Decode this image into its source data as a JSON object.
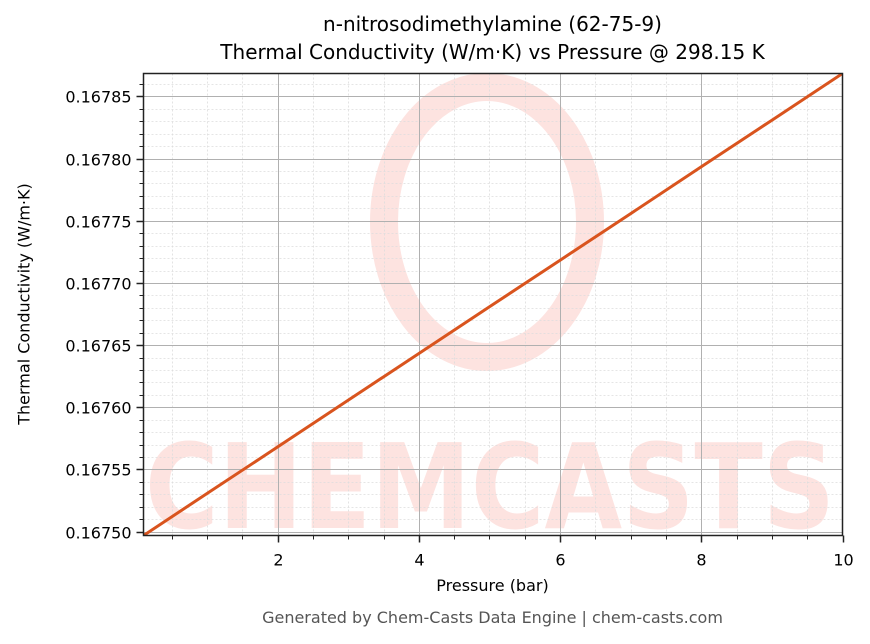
{
  "title_line1": "n-nitrosodimethylamine (62-75-9)",
  "title_line2": "Thermal Conductivity (W/m·K) vs Pressure @ 298.15 K",
  "xlabel": "Pressure (bar)",
  "ylabel": "Thermal Conductivity (W/m·K)",
  "footer": "Generated by Chem-Casts Data Engine | chem-casts.com",
  "watermark": "CHEMCASTS",
  "colors": {
    "line": "#d9541e",
    "watermark": "#fde3e0",
    "grid_major": "#b0b0b0",
    "grid_minor": "#dddddd",
    "footer_text": "#555555"
  },
  "chart_data": {
    "type": "line",
    "title": "n-nitrosodimethylamine (62-75-9)\nThermal Conductivity (W/m·K) vs Pressure @ 298.15 K",
    "xlabel": "Pressure (bar)",
    "ylabel": "Thermal Conductivity (W/m·K)",
    "xlim": [
      0.1,
      10
    ],
    "ylim": [
      0.1674968,
      0.1678685
    ],
    "xticks": [
      2,
      4,
      6,
      8,
      10
    ],
    "xtick_labels": [
      "2",
      "4",
      "6",
      "8",
      "10"
    ],
    "x_minor_step": 0.5,
    "yticks": [
      0.1675,
      0.16755,
      0.1676,
      0.16765,
      0.1677,
      0.16775,
      0.1678,
      0.16785
    ],
    "ytick_labels": [
      "0.16750",
      "0.16755",
      "0.16760",
      "0.16765",
      "0.16770",
      "0.16775",
      "0.16780",
      "0.16785"
    ],
    "y_minor_step": 1e-05,
    "grid": true,
    "legend": null,
    "series": [
      {
        "name": "Thermal Conductivity",
        "color": "#d9541e",
        "x": [
          0.1,
          1,
          2,
          3,
          4,
          5,
          6,
          7,
          8,
          9,
          10
        ],
        "y": [
          0.1674968,
          0.1675306,
          0.1675681,
          0.1676057,
          0.1676432,
          0.1676808,
          0.1677183,
          0.1677558,
          0.1677934,
          0.1678309,
          0.1678685
        ]
      }
    ]
  }
}
